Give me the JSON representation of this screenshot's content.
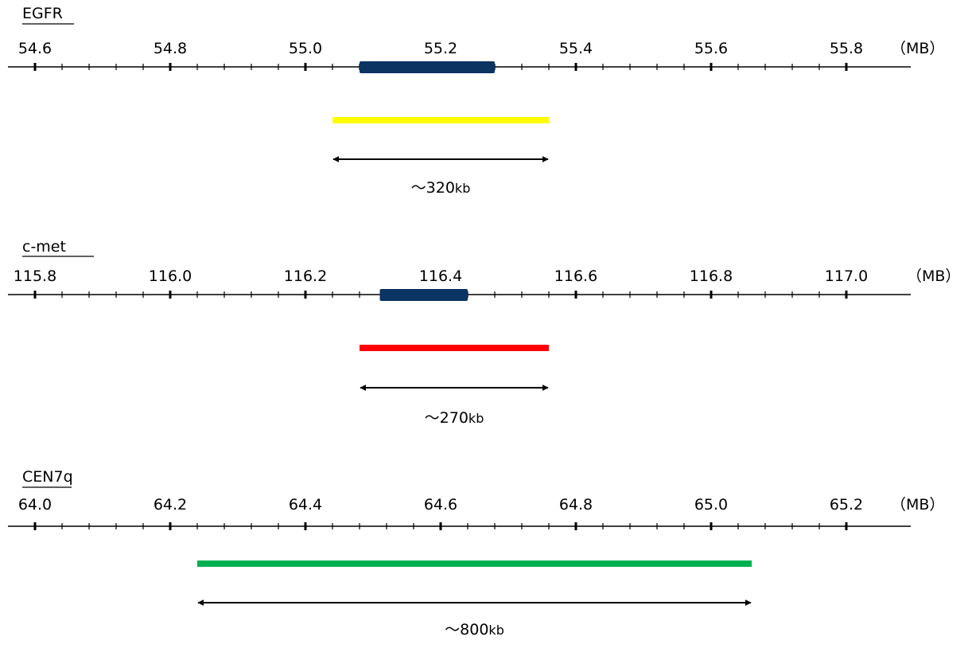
{
  "unit_label": "（MB）",
  "colors": {
    "axis": "#000000",
    "gene_block": "#0b3463",
    "egfr_probe": "#ffff00",
    "cmet_probe": "#ff0000",
    "cen7q_probe": "#00b050"
  },
  "tracks": [
    {
      "title": "EGFR",
      "ticks": [
        "54.6",
        "54.8",
        "55.0",
        "55.2",
        "55.4",
        "55.6",
        "55.8"
      ],
      "gene": {
        "start_mb": 55.08,
        "end_mb": 55.28
      },
      "probe": {
        "start_mb": 55.04,
        "end_mb": 55.36,
        "color_key": "egfr_probe"
      },
      "size_prefix": "～",
      "size_number": "320",
      "size_unit": "kb"
    },
    {
      "title": "c-met",
      "ticks": [
        "115.8",
        "116.0",
        "116.2",
        "116.4",
        "116.6",
        "116.8",
        "117.0"
      ],
      "gene": {
        "start_mb": 116.31,
        "end_mb": 116.44
      },
      "probe": {
        "start_mb": 116.28,
        "end_mb": 116.56,
        "color_key": "cmet_probe"
      },
      "size_prefix": "～",
      "size_number": "270",
      "size_unit": "kb"
    },
    {
      "title": "CEN7q",
      "ticks": [
        "64.0",
        "64.2",
        "64.4",
        "64.6",
        "64.8",
        "65.0",
        "65.2"
      ],
      "gene": null,
      "probe": {
        "start_mb": 64.24,
        "end_mb": 65.06,
        "color_key": "cen7q_probe"
      },
      "size_prefix": "～",
      "size_number": "800",
      "size_unit": "kb"
    }
  ]
}
